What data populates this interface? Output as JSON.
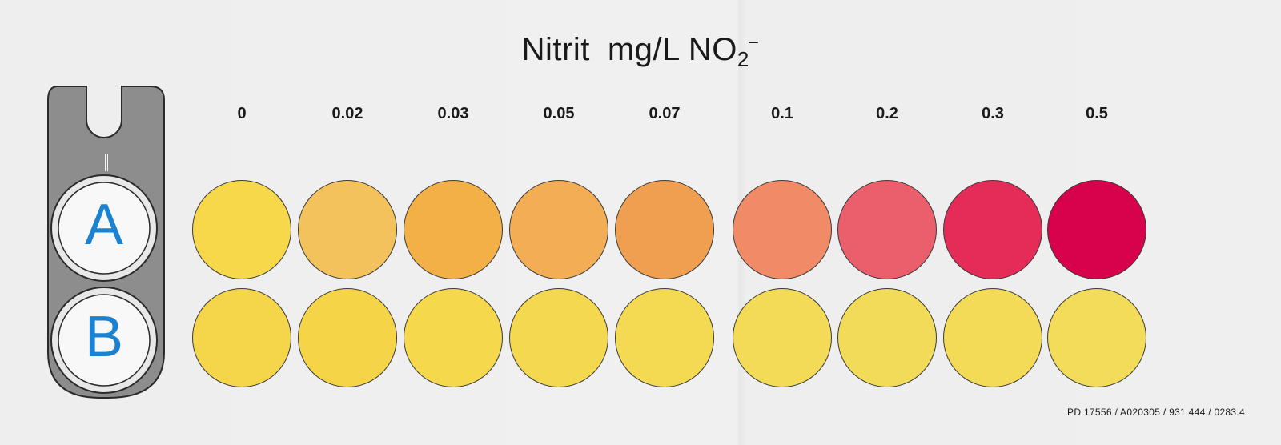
{
  "title": {
    "main": "Nitrit",
    "unit": "mg/L NO",
    "sub": "2",
    "sup": "−"
  },
  "scale": {
    "labels": [
      "0",
      "0.02",
      "0.03",
      "0.05",
      "0.07",
      "0.1",
      "0.2",
      "0.3",
      "0.5"
    ],
    "row_a_colors": [
      "#f7d84a",
      "#f3c25d",
      "#f2b046",
      "#f2ad55",
      "#f09f50",
      "#f08a67",
      "#eb5e6c",
      "#e52c58",
      "#d8024c"
    ],
    "row_b_colors": [
      "#f5d54a",
      "#f5d448",
      "#f5d84c",
      "#f4d84f",
      "#f4d952",
      "#f3db58",
      "#f3db5a",
      "#f3da57",
      "#f3dc5a"
    ]
  },
  "holder": {
    "slot_a": "A",
    "slot_b": "B"
  },
  "footer": {
    "code": "PD 17556 / A020305 / 931 444 / 0283.4"
  },
  "icons": {
    "holder": "comparator-holder-icon"
  }
}
